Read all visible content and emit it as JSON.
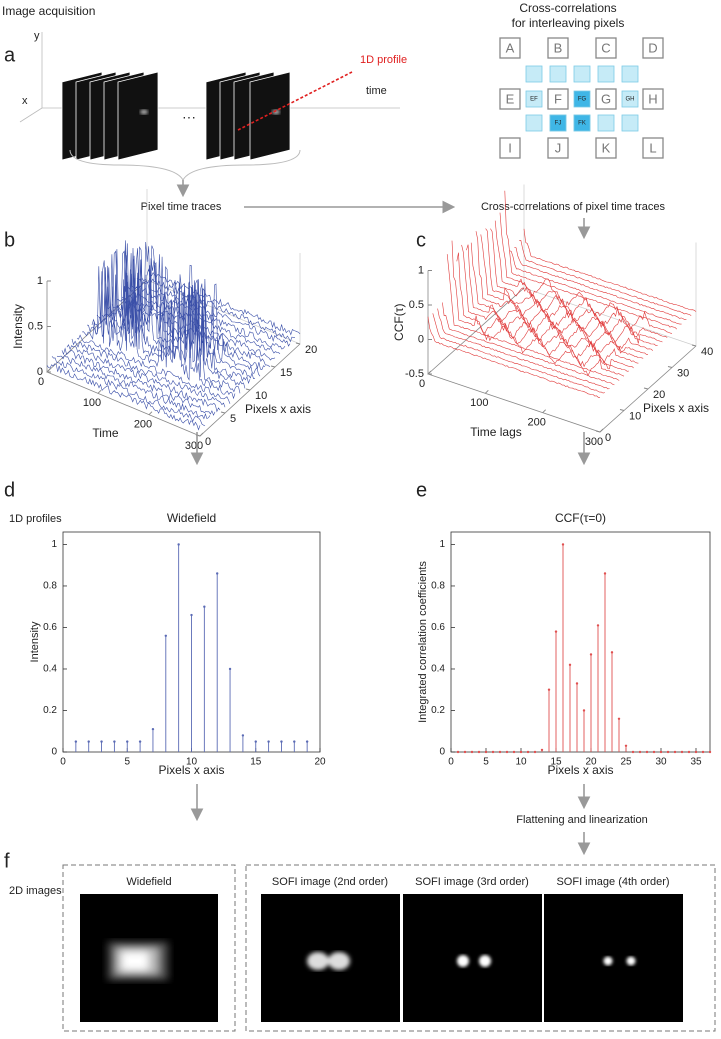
{
  "panel_labels": [
    "a",
    "b",
    "c",
    "d",
    "e",
    "f"
  ],
  "acquisition": {
    "title": "Image acquisition",
    "y_axis": "y",
    "x_axis": "x",
    "time_axis": "time",
    "profile": "1D profile",
    "ellipsis": "···"
  },
  "cross_grid": {
    "title_lines": [
      "Cross-correlations",
      "for interleaving pixels"
    ],
    "pixels": [
      "A",
      "B",
      "C",
      "D",
      "E",
      "F",
      "G",
      "H",
      "I",
      "J",
      "K",
      "L"
    ],
    "virtual": [
      "EF",
      "FG",
      "GH",
      "FJ",
      "FK"
    ]
  },
  "flow": {
    "pixel_traces": "Pixel time traces",
    "ccf_traces": "Cross-correlations of pixel time traces",
    "profiles": "1D profiles",
    "flatten": "Flattening and linearization",
    "images_2d": "2D images"
  },
  "plot_b": {
    "zlabel": "Intensity",
    "xlabel": "Time",
    "ylabel": "Pixels x axis",
    "zticks": [
      0,
      0.5,
      1
    ],
    "xticks": [
      0,
      100,
      200,
      300
    ],
    "yticks": [
      0,
      5,
      10,
      15,
      20
    ]
  },
  "plot_c": {
    "zlabel": "CCF(τ)",
    "xlabel": "Time lags",
    "ylabel": "Pixels x axis",
    "zticks": [
      -0.5,
      0,
      0.5,
      1
    ],
    "xticks": [
      0,
      100,
      200,
      300
    ],
    "yticks": [
      0,
      10,
      20,
      30,
      40
    ]
  },
  "chart_data": [
    {
      "type": "stem",
      "title": "Widefield",
      "xlabel": "Pixels x axis",
      "ylabel": "Intensity",
      "color": "#5b6bb5",
      "x": [
        1,
        2,
        3,
        4,
        5,
        6,
        7,
        8,
        9,
        10,
        11,
        12,
        13,
        14,
        15,
        16,
        17,
        18,
        19
      ],
      "values": [
        0.05,
        0.05,
        0.05,
        0.05,
        0.05,
        0.05,
        0.11,
        0.56,
        1.0,
        0.66,
        0.7,
        0.86,
        0.4,
        0.08,
        0.05,
        0.05,
        0.05,
        0.05,
        0.05
      ],
      "xlim": [
        0,
        20
      ],
      "ylim": [
        0,
        1.06
      ],
      "xticks": [
        0,
        5,
        10,
        15,
        20
      ],
      "yticks": [
        0,
        0.2,
        0.4,
        0.6,
        0.8,
        1
      ]
    },
    {
      "type": "stem",
      "title": "CCF(τ=0)",
      "xlabel": "Pixels x axis",
      "ylabel": "Integrated correlation coefficients",
      "color": "#e05050",
      "x": [
        1,
        2,
        3,
        4,
        5,
        6,
        7,
        8,
        9,
        10,
        11,
        12,
        13,
        14,
        15,
        16,
        17,
        18,
        19,
        20,
        21,
        22,
        23,
        24,
        25,
        26,
        27,
        28,
        29,
        30,
        31,
        32,
        33,
        34,
        35,
        36,
        37
      ],
      "values": [
        0,
        0,
        0,
        0,
        0,
        0,
        0,
        0,
        0,
        0,
        0,
        0,
        0.01,
        0.3,
        0.58,
        1.0,
        0.42,
        0.33,
        0.2,
        0.47,
        0.61,
        0.86,
        0.48,
        0.16,
        0.03,
        0,
        0,
        0,
        0,
        0,
        0,
        0,
        0,
        0,
        0,
        0,
        0
      ],
      "xlim": [
        0,
        37
      ],
      "ylim": [
        0,
        1.06
      ],
      "xticks": [
        0,
        5,
        10,
        15,
        20,
        25,
        30,
        35
      ],
      "yticks": [
        0,
        0.2,
        0.4,
        0.6,
        0.8,
        1
      ]
    }
  ],
  "images": {
    "widefield": "Widefield",
    "sofi": [
      "SOFI image (2nd order)",
      "SOFI image (3rd order)",
      "SOFI image (4th order)"
    ]
  }
}
